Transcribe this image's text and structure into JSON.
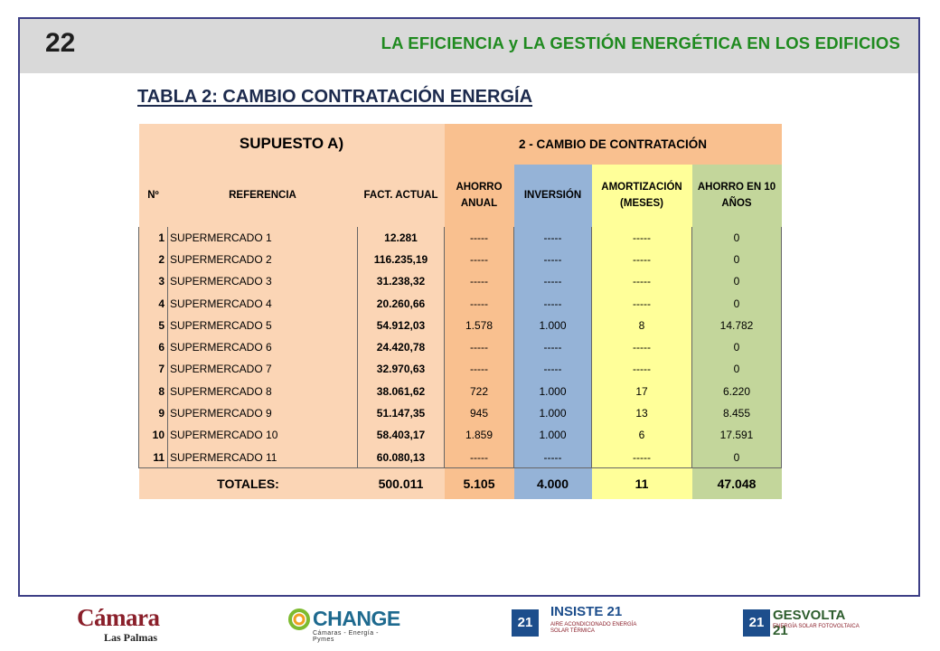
{
  "header": {
    "page_number": "22",
    "title": "LA EFICIENCIA y LA GESTIÓN ENERGÉTICA EN LOS EDIFICIOS"
  },
  "table_title": "TABLA 2: CAMBIO CONTRATACIÓN ENERGÍA",
  "table": {
    "supuesto": "SUPUESTO A)",
    "cambio": "2 - CAMBIO DE CONTRATACIÓN",
    "headers": {
      "num": "Nº",
      "referencia": "REFERENCIA",
      "fact": "FACT. ACTUAL",
      "ahorro_anual": "AHORRO ANUAL",
      "inversion": "INVERSIÓN",
      "amortizacion": "AMORTIZACIÓN (MESES)",
      "ahorro_10": "AHORRO EN 10 AÑOS"
    },
    "rows": [
      {
        "n": "1",
        "ref": "SUPERMERCADO 1",
        "fact": "12.281",
        "ahorro": "-----",
        "inv": "-----",
        "amort": "-----",
        "ahorro10": "0"
      },
      {
        "n": "2",
        "ref": "SUPERMERCADO 2",
        "fact": "116.235,19",
        "ahorro": "-----",
        "inv": "-----",
        "amort": "-----",
        "ahorro10": "0"
      },
      {
        "n": "3",
        "ref": "SUPERMERCADO 3",
        "fact": "31.238,32",
        "ahorro": "-----",
        "inv": "-----",
        "amort": "-----",
        "ahorro10": "0"
      },
      {
        "n": "4",
        "ref": "SUPERMERCADO 4",
        "fact": "20.260,66",
        "ahorro": "-----",
        "inv": "-----",
        "amort": "-----",
        "ahorro10": "0"
      },
      {
        "n": "5",
        "ref": "SUPERMERCADO 5",
        "fact": "54.912,03",
        "ahorro": "1.578",
        "inv": "1.000",
        "amort": "8",
        "ahorro10": "14.782"
      },
      {
        "n": "6",
        "ref": "SUPERMERCADO 6",
        "fact": "24.420,78",
        "ahorro": "-----",
        "inv": "-----",
        "amort": "-----",
        "ahorro10": "0"
      },
      {
        "n": "7",
        "ref": "SUPERMERCADO 7",
        "fact": "32.970,63",
        "ahorro": "-----",
        "inv": "-----",
        "amort": "-----",
        "ahorro10": "0"
      },
      {
        "n": "8",
        "ref": "SUPERMERCADO 8",
        "fact": "38.061,62",
        "ahorro": "722",
        "inv": "1.000",
        "amort": "17",
        "ahorro10": "6.220"
      },
      {
        "n": "9",
        "ref": "SUPERMERCADO 9",
        "fact": "51.147,35",
        "ahorro": "945",
        "inv": "1.000",
        "amort": "13",
        "ahorro10": "8.455"
      },
      {
        "n": "10",
        "ref": "SUPERMERCADO 10",
        "fact": "58.403,17",
        "ahorro": "1.859",
        "inv": "1.000",
        "amort": "6",
        "ahorro10": "17.591"
      },
      {
        "n": "11",
        "ref": "SUPERMERCADO 11",
        "fact": "60.080,13",
        "ahorro": "-----",
        "inv": "-----",
        "amort": "-----",
        "ahorro10": "0"
      }
    ],
    "totals": {
      "label": "TOTALES:",
      "fact": "500.011",
      "ahorro": "5.105",
      "inv": "4.000",
      "amort": "11",
      "ahorro10": "47.048"
    }
  },
  "logos": {
    "camara": {
      "name": "Cámara",
      "sub": "Las Palmas"
    },
    "change": {
      "name": "CHANGE",
      "sub": "Cámaras - Energía - Pymes"
    },
    "insiste": {
      "badge": "21",
      "name": "INSISTE 21",
      "sub": "AIRE ACONDICIONADO ENERGÍA SOLAR TÉRMICA"
    },
    "gesvolta": {
      "badge": "21",
      "name": "GESVOLTA 21",
      "sub": "ENERGÍA SOLAR FOTOVOLTAICA"
    }
  },
  "colors": {
    "frame": "#3d3f86",
    "header_band": "#d9d9d9",
    "header_title": "#1f8a1f",
    "peach": "#fbd5b5",
    "orange": "#f9c08f",
    "blue": "#95b3d7",
    "yellow": "#ffff99",
    "green": "#c3d69b"
  }
}
